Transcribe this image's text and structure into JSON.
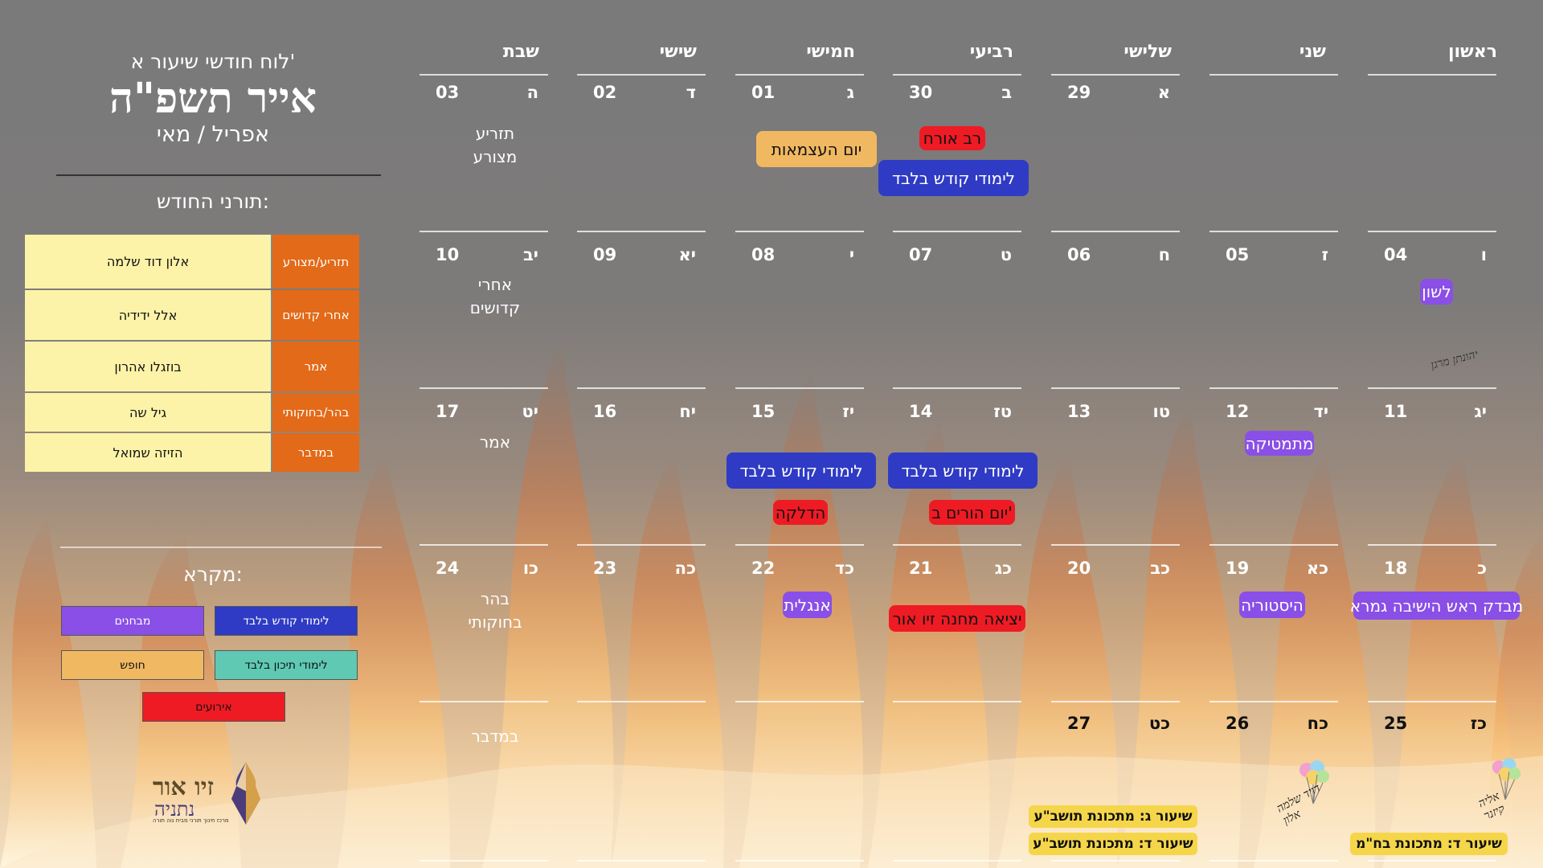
{
  "header": {
    "subtitle": "לוח חודשי שיעור א'",
    "title": "אייר תשפ\"ה",
    "months": "אפריל / מאי"
  },
  "duty": {
    "title": "תורני החודש:",
    "rows": [
      {
        "parasha": "תזריע/מצורע",
        "name": "אלון דוד שלמה"
      },
      {
        "parasha": "אחרי קדושים",
        "name": "אלל ידידיה"
      },
      {
        "parasha": "אמר",
        "name": "בוזגלו אהרון"
      },
      {
        "parasha": "בהר/בחוקותי",
        "name": "גיל שה"
      },
      {
        "parasha": "במדבר",
        "name": "הזיזה שמואל"
      }
    ]
  },
  "legend": {
    "title": "מקרא:",
    "items": [
      {
        "label": "לימודי קודש בלבד",
        "color": "#2f3bc4"
      },
      {
        "label": "מבחנים",
        "color": "#8a4fe6"
      },
      {
        "label": "לימודי תיכון בלבד",
        "color": "#5fc9b4"
      },
      {
        "label": "חופש",
        "color": "#f1b862"
      },
      {
        "label": "אירועים",
        "color": "#ee1b24"
      }
    ]
  },
  "logo": {
    "name": "זיו אור",
    "city": "נתניה",
    "tagline": "מרכז חינוך תורני מבית נוה תורה"
  },
  "days": [
    "ראשון",
    "שני",
    "שלישי",
    "רביעי",
    "חמישי",
    "שישי",
    "שבת"
  ],
  "weeks": [
    {
      "cells": [
        {
          "num": "",
          "heb": ""
        },
        {
          "num": "",
          "heb": ""
        },
        {
          "num": "29",
          "heb": "א"
        },
        {
          "num": "30",
          "heb": "ב"
        },
        {
          "num": "01",
          "heb": "ג"
        },
        {
          "num": "02",
          "heb": "ד"
        },
        {
          "num": "03",
          "heb": "ה"
        }
      ],
      "parasha": "תזריע מצורע"
    },
    {
      "cells": [
        {
          "num": "04",
          "heb": "ו"
        },
        {
          "num": "05",
          "heb": "ז"
        },
        {
          "num": "06",
          "heb": "ח"
        },
        {
          "num": "07",
          "heb": "ט"
        },
        {
          "num": "08",
          "heb": "י"
        },
        {
          "num": "09",
          "heb": "יא"
        },
        {
          "num": "10",
          "heb": "יב"
        }
      ],
      "parasha": "אחרי קדושים"
    },
    {
      "cells": [
        {
          "num": "11",
          "heb": "יג"
        },
        {
          "num": "12",
          "heb": "יד"
        },
        {
          "num": "13",
          "heb": "טו"
        },
        {
          "num": "14",
          "heb": "טז"
        },
        {
          "num": "15",
          "heb": "יז"
        },
        {
          "num": "16",
          "heb": "יח"
        },
        {
          "num": "17",
          "heb": "יט"
        }
      ],
      "parasha": "אמר"
    },
    {
      "cells": [
        {
          "num": "18",
          "heb": "כ"
        },
        {
          "num": "19",
          "heb": "כא"
        },
        {
          "num": "20",
          "heb": "כב"
        },
        {
          "num": "21",
          "heb": "כג"
        },
        {
          "num": "22",
          "heb": "כד"
        },
        {
          "num": "23",
          "heb": "כה"
        },
        {
          "num": "24",
          "heb": "כו"
        }
      ],
      "parasha": "בהר בחוקותי"
    },
    {
      "cells": [
        {
          "num": "25",
          "heb": "כז"
        },
        {
          "num": "26",
          "heb": "כח"
        },
        {
          "num": "27",
          "heb": "כט"
        },
        {
          "num": "",
          "heb": ""
        },
        {
          "num": "",
          "heb": ""
        },
        {
          "num": "",
          "heb": ""
        },
        {
          "num": "",
          "heb": ""
        }
      ],
      "parasha": "במדבר"
    }
  ],
  "events": {
    "rav_oreach": "רב אורח",
    "kodesh_only": "לימודי קודש בלבד",
    "independence": "יום העצמאות",
    "lashon": "לשון",
    "math": "מתמטיקה",
    "parents_day": "יום הורים ב'",
    "lighting": "הדלקה",
    "gemara_test": "מבדק ראש הישיבה גמרא",
    "history": "היסטוריה",
    "camp_exit": "יציאה מחנה זיו אור",
    "english": "אנגלית",
    "exam_g_tosh": "שיעור ג: מתכונת תושב\"ע",
    "exam_d_tosh": "שיעור ד: מתכונת תושב\"ע",
    "exam_d_tanach": "שיעור ד: מתכונת בח\"מ"
  },
  "signatures": {
    "sig1": "יהונתן מרגן",
    "sig2": "דויד שלמה אלון",
    "sig3": "אליה קיזנר"
  }
}
